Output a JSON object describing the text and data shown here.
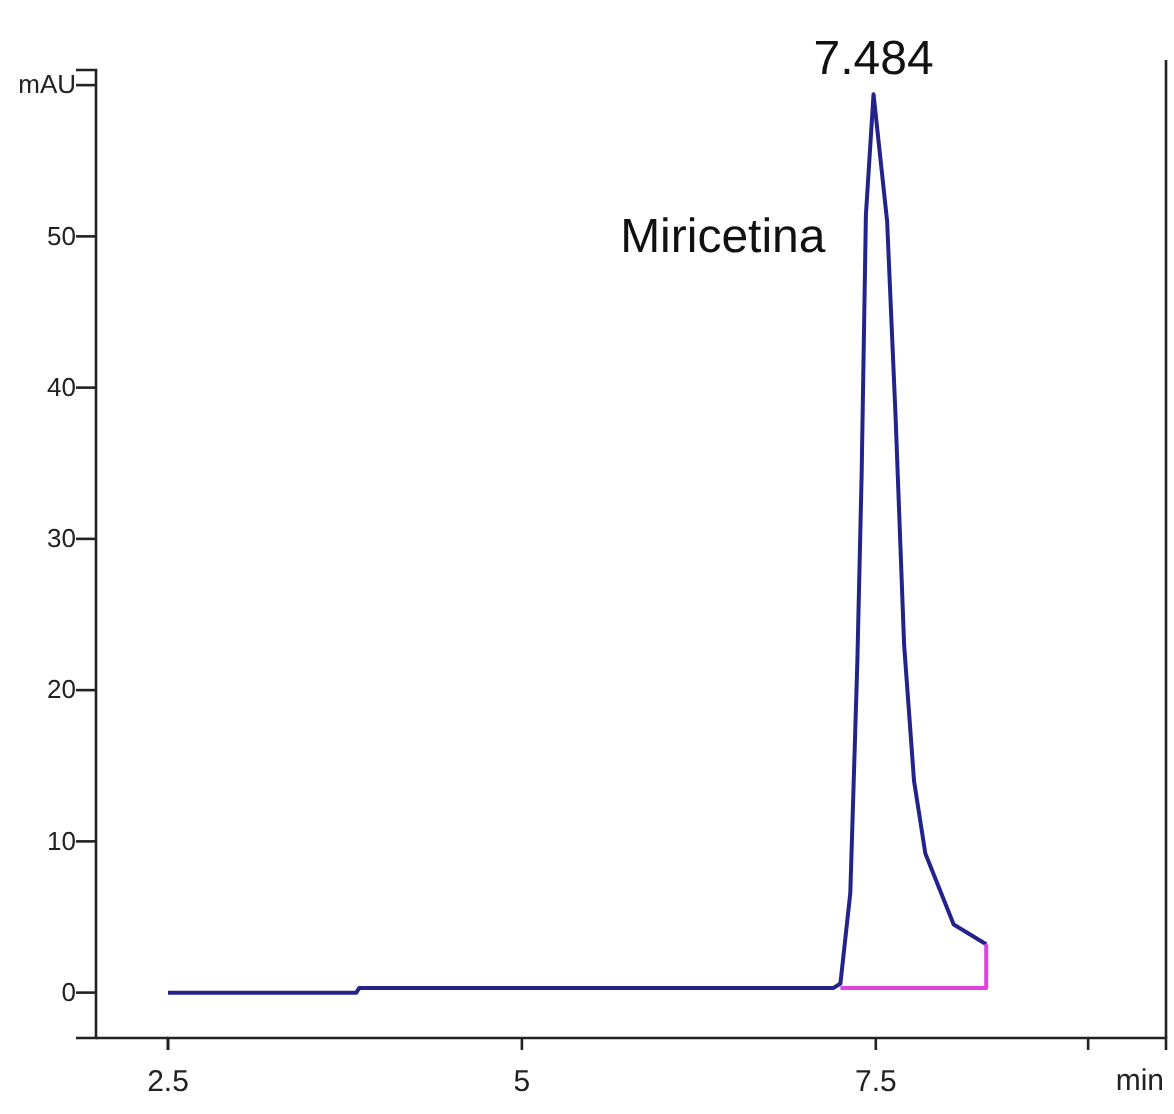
{
  "chart_data": {
    "type": "line",
    "xlabel": "min",
    "x": [
      2.5,
      3.83,
      3.85,
      7.2,
      7.25,
      7.32,
      7.37,
      7.4,
      7.43,
      7.484,
      7.58,
      7.64,
      7.7,
      7.77,
      7.85,
      8.05,
      8.28,
      8.28
    ],
    "series": [
      {
        "color": "#23238c",
        "values": [
          0,
          0,
          0.3,
          0.3,
          0.6,
          6.6,
          22,
          34.3,
          51.4,
          59.4,
          51,
          38,
          23,
          14,
          9.2,
          4.5,
          3.2,
          null
        ]
      },
      {
        "color": "#e040e0",
        "values": [
          null,
          null,
          null,
          null,
          0.3,
          0.3,
          0.3,
          0.3,
          0.3,
          0.3,
          0.3,
          0.3,
          0.3,
          0.3,
          0.3,
          0.3,
          0.3,
          3.2
        ]
      }
    ],
    "xlim": [
      2.5,
      9.55
    ],
    "xticks": [
      2.5,
      5,
      7.5,
      {
        "value": 9,
        "label": null
      }
    ],
    "ylim": [
      -3,
      61
    ],
    "yticks": [
      0,
      10,
      20,
      30,
      40,
      50,
      {
        "value": 60,
        "label": "mAU"
      }
    ],
    "annotations": [
      {
        "text": "7.484",
        "x": 7.484,
        "y": 59.4
      },
      {
        "text": "Miricetina",
        "x": 7.484,
        "y": 50
      }
    ],
    "grid": false
  }
}
